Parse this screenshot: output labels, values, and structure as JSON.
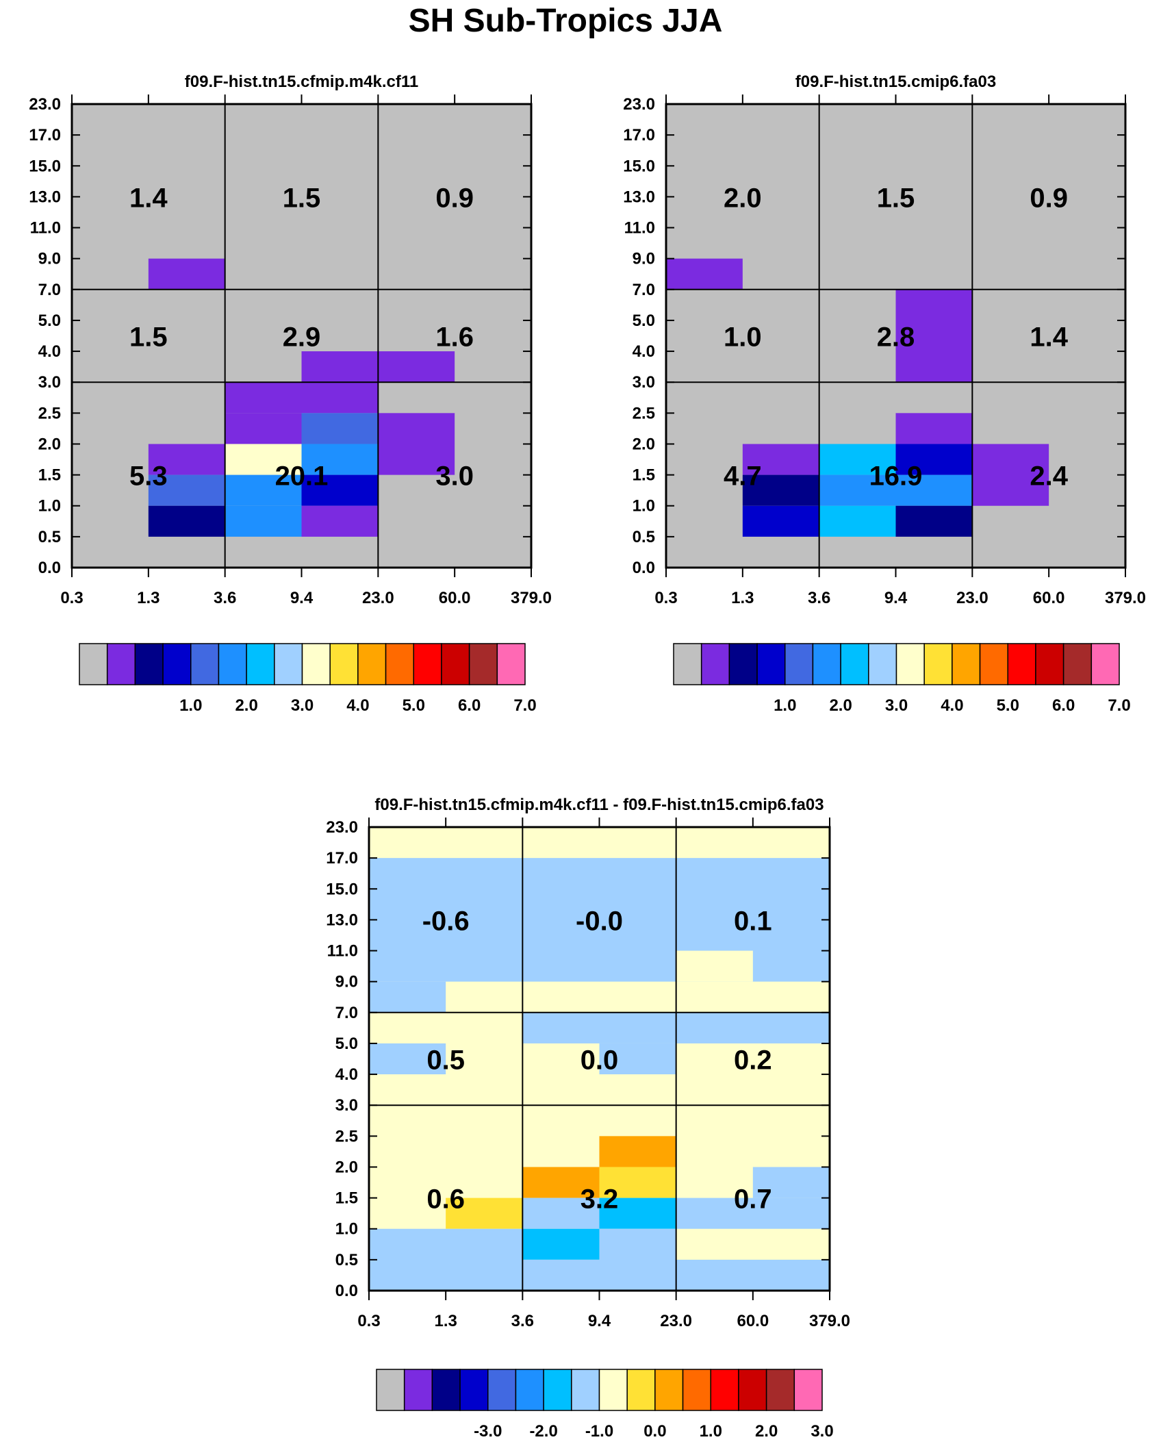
{
  "figure": {
    "title": "SH Sub-Tropics JJA"
  },
  "colors": {
    "missing": "#c0c0c0",
    "seq": [
      "#c0c0c0",
      "#7b2be0",
      "#000088",
      "#0000cc",
      "#4169e1",
      "#1e90ff",
      "#00bfff",
      "#a0d0ff",
      "#ffffcc",
      "#ffe135",
      "#ffa500",
      "#ff6a00",
      "#ff0000",
      "#cc0000",
      "#a52a2a",
      "#ff69b4"
    ]
  },
  "chart_data": [
    {
      "type": "heatmap",
      "title": "f09.F-hist.tn15.cfmip.m4k.cf11",
      "x_ticks": [
        "0.3",
        "1.3",
        "3.6",
        "9.4",
        "23.0",
        "60.0",
        "379.0"
      ],
      "y_ticks": [
        "0.0",
        "0.5",
        "1.0",
        "1.5",
        "2.0",
        "2.5",
        "3.0",
        "4.0",
        "5.0",
        "7.0",
        "9.0",
        "11.0",
        "13.0",
        "15.0",
        "17.0",
        "23.0"
      ],
      "grid": {
        "x_divisions": [
          "3.6",
          "23.0"
        ],
        "y_divisions": [
          "3.0",
          "7.0"
        ]
      },
      "cells": [
        {
          "x": [
            "1.3",
            "3.6"
          ],
          "y": [
            "7.0",
            "9.0"
          ],
          "color": "#7b2be0"
        },
        {
          "x": [
            "9.4",
            "60.0"
          ],
          "y": [
            "3.0",
            "4.0"
          ],
          "color": "#7b2be0"
        },
        {
          "x": [
            "3.6",
            "23.0"
          ],
          "y": [
            "2.5",
            "3.0"
          ],
          "color": "#7b2be0"
        },
        {
          "x": [
            "3.6",
            "9.4"
          ],
          "y": [
            "2.0",
            "2.5"
          ],
          "color": "#7b2be0"
        },
        {
          "x": [
            "9.4",
            "23.0"
          ],
          "y": [
            "2.0",
            "2.5"
          ],
          "color": "#4169e1"
        },
        {
          "x": [
            "23.0",
            "60.0"
          ],
          "y": [
            "1.5",
            "2.5"
          ],
          "color": "#7b2be0"
        },
        {
          "x": [
            "1.3",
            "3.6"
          ],
          "y": [
            "1.5",
            "2.0"
          ],
          "color": "#7b2be0"
        },
        {
          "x": [
            "3.6",
            "9.4"
          ],
          "y": [
            "1.5",
            "2.0"
          ],
          "color": "#ffffcc"
        },
        {
          "x": [
            "9.4",
            "23.0"
          ],
          "y": [
            "1.5",
            "2.0"
          ],
          "color": "#1e90ff"
        },
        {
          "x": [
            "1.3",
            "3.6"
          ],
          "y": [
            "1.0",
            "1.5"
          ],
          "color": "#4169e1"
        },
        {
          "x": [
            "3.6",
            "9.4"
          ],
          "y": [
            "1.0",
            "1.5"
          ],
          "color": "#1e90ff"
        },
        {
          "x": [
            "9.4",
            "23.0"
          ],
          "y": [
            "1.0",
            "1.5"
          ],
          "color": "#0000cc"
        },
        {
          "x": [
            "1.3",
            "3.6"
          ],
          "y": [
            "0.5",
            "1.0"
          ],
          "color": "#000088"
        },
        {
          "x": [
            "3.6",
            "9.4"
          ],
          "y": [
            "0.5",
            "1.0"
          ],
          "color": "#1e90ff"
        },
        {
          "x": [
            "9.4",
            "23.0"
          ],
          "y": [
            "0.5",
            "1.0"
          ],
          "color": "#7b2be0"
        }
      ],
      "labels": [
        {
          "text": "1.4",
          "x": "1.3",
          "y": "13.0"
        },
        {
          "text": "1.5",
          "x": "9.4",
          "y": "13.0"
        },
        {
          "text": "0.9",
          "x": "60.0",
          "y": "13.0"
        },
        {
          "text": "1.5",
          "x": "1.3",
          "y": "4.5"
        },
        {
          "text": "2.9",
          "x": "9.4",
          "y": "4.5"
        },
        {
          "text": "1.6",
          "x": "60.0",
          "y": "4.5"
        },
        {
          "text": "5.3",
          "x": "1.3",
          "y": "1.5"
        },
        {
          "text": "20.1",
          "x": "9.4",
          "y": "1.5"
        },
        {
          "text": "3.0",
          "x": "60.0",
          "y": "1.5"
        }
      ],
      "colorbar": {
        "colors_key": "seq",
        "labels": [
          "1.0",
          "2.0",
          "3.0",
          "4.0",
          "5.0",
          "6.0",
          "7.0"
        ]
      }
    },
    {
      "type": "heatmap",
      "title": "f09.F-hist.tn15.cmip6.fa03",
      "x_ticks": [
        "0.3",
        "1.3",
        "3.6",
        "9.4",
        "23.0",
        "60.0",
        "379.0"
      ],
      "y_ticks": [
        "0.0",
        "0.5",
        "1.0",
        "1.5",
        "2.0",
        "2.5",
        "3.0",
        "4.0",
        "5.0",
        "7.0",
        "9.0",
        "11.0",
        "13.0",
        "15.0",
        "17.0",
        "23.0"
      ],
      "grid": {
        "x_divisions": [
          "3.6",
          "23.0"
        ],
        "y_divisions": [
          "3.0",
          "7.0"
        ]
      },
      "cells": [
        {
          "x": [
            "0.3",
            "1.3"
          ],
          "y": [
            "7.0",
            "9.0"
          ],
          "color": "#7b2be0"
        },
        {
          "x": [
            "9.4",
            "23.0"
          ],
          "y": [
            "3.0",
            "7.0"
          ],
          "color": "#7b2be0"
        },
        {
          "x": [
            "9.4",
            "23.0"
          ],
          "y": [
            "2.0",
            "2.5"
          ],
          "color": "#7b2be0"
        },
        {
          "x": [
            "1.3",
            "3.6"
          ],
          "y": [
            "1.5",
            "2.0"
          ],
          "color": "#7b2be0"
        },
        {
          "x": [
            "3.6",
            "9.4"
          ],
          "y": [
            "1.5",
            "2.0"
          ],
          "color": "#00bfff"
        },
        {
          "x": [
            "9.4",
            "23.0"
          ],
          "y": [
            "1.5",
            "2.0"
          ],
          "color": "#0000cc"
        },
        {
          "x": [
            "23.0",
            "60.0"
          ],
          "y": [
            "1.0",
            "2.0"
          ],
          "color": "#7b2be0"
        },
        {
          "x": [
            "1.3",
            "3.6"
          ],
          "y": [
            "1.0",
            "1.5"
          ],
          "color": "#000088"
        },
        {
          "x": [
            "3.6",
            "9.4"
          ],
          "y": [
            "1.0",
            "1.5"
          ],
          "color": "#1e90ff"
        },
        {
          "x": [
            "9.4",
            "23.0"
          ],
          "y": [
            "1.0",
            "1.5"
          ],
          "color": "#1e90ff"
        },
        {
          "x": [
            "1.3",
            "3.6"
          ],
          "y": [
            "0.5",
            "1.0"
          ],
          "color": "#0000cc"
        },
        {
          "x": [
            "3.6",
            "9.4"
          ],
          "y": [
            "0.5",
            "1.0"
          ],
          "color": "#00bfff"
        },
        {
          "x": [
            "9.4",
            "23.0"
          ],
          "y": [
            "0.5",
            "1.0"
          ],
          "color": "#000088"
        }
      ],
      "labels": [
        {
          "text": "2.0",
          "x": "1.3",
          "y": "13.0"
        },
        {
          "text": "1.5",
          "x": "9.4",
          "y": "13.0"
        },
        {
          "text": "0.9",
          "x": "60.0",
          "y": "13.0"
        },
        {
          "text": "1.0",
          "x": "1.3",
          "y": "4.5"
        },
        {
          "text": "2.8",
          "x": "9.4",
          "y": "4.5"
        },
        {
          "text": "1.4",
          "x": "60.0",
          "y": "4.5"
        },
        {
          "text": "4.7",
          "x": "1.3",
          "y": "1.5"
        },
        {
          "text": "16.9",
          "x": "9.4",
          "y": "1.5"
        },
        {
          "text": "2.4",
          "x": "60.0",
          "y": "1.5"
        }
      ],
      "colorbar": {
        "colors_key": "seq",
        "labels": [
          "1.0",
          "2.0",
          "3.0",
          "4.0",
          "5.0",
          "6.0",
          "7.0"
        ]
      }
    },
    {
      "type": "heatmap",
      "title": "f09.F-hist.tn15.cfmip.m4k.cf11 - f09.F-hist.tn15.cmip6.fa03",
      "x_ticks": [
        "0.3",
        "1.3",
        "3.6",
        "9.4",
        "23.0",
        "60.0",
        "379.0"
      ],
      "y_ticks": [
        "0.0",
        "0.5",
        "1.0",
        "1.5",
        "2.0",
        "2.5",
        "3.0",
        "4.0",
        "5.0",
        "7.0",
        "9.0",
        "11.0",
        "13.0",
        "15.0",
        "17.0",
        "23.0"
      ],
      "grid": {
        "x_divisions": [
          "3.6",
          "23.0"
        ],
        "y_divisions": [
          "3.0",
          "7.0"
        ]
      },
      "background": "#ffffcc",
      "cells": [
        {
          "x": [
            "0.3",
            "379.0"
          ],
          "y": [
            "9.0",
            "17.0"
          ],
          "color": "#a0d0ff"
        },
        {
          "x": [
            "0.3",
            "1.3"
          ],
          "y": [
            "7.0",
            "9.0"
          ],
          "color": "#a0d0ff"
        },
        {
          "x": [
            "23.0",
            "60.0"
          ],
          "y": [
            "9.0",
            "11.0"
          ],
          "color": "#ffffcc"
        },
        {
          "x": [
            "3.6",
            "379.0"
          ],
          "y": [
            "5.0",
            "7.0"
          ],
          "color": "#a0d0ff"
        },
        {
          "x": [
            "0.3",
            "1.3"
          ],
          "y": [
            "4.0",
            "5.0"
          ],
          "color": "#a0d0ff"
        },
        {
          "x": [
            "9.4",
            "23.0"
          ],
          "y": [
            "4.0",
            "5.0"
          ],
          "color": "#a0d0ff"
        },
        {
          "x": [
            "9.4",
            "23.0"
          ],
          "y": [
            "2.0",
            "2.5"
          ],
          "color": "#ffa500"
        },
        {
          "x": [
            "3.6",
            "9.4"
          ],
          "y": [
            "1.5",
            "2.0"
          ],
          "color": "#ffa500"
        },
        {
          "x": [
            "9.4",
            "23.0"
          ],
          "y": [
            "1.5",
            "2.0"
          ],
          "color": "#ffe135"
        },
        {
          "x": [
            "60.0",
            "379.0"
          ],
          "y": [
            "1.5",
            "2.0"
          ],
          "color": "#a0d0ff"
        },
        {
          "x": [
            "1.3",
            "3.6"
          ],
          "y": [
            "1.0",
            "1.5"
          ],
          "color": "#ffe135"
        },
        {
          "x": [
            "3.6",
            "9.4"
          ],
          "y": [
            "1.0",
            "1.5"
          ],
          "color": "#a0d0ff"
        },
        {
          "x": [
            "9.4",
            "23.0"
          ],
          "y": [
            "1.0",
            "1.5"
          ],
          "color": "#00bfff"
        },
        {
          "x": [
            "23.0",
            "379.0"
          ],
          "y": [
            "1.0",
            "1.5"
          ],
          "color": "#a0d0ff"
        },
        {
          "x": [
            "0.3",
            "3.6"
          ],
          "y": [
            "0.0",
            "1.0"
          ],
          "color": "#a0d0ff"
        },
        {
          "x": [
            "3.6",
            "9.4"
          ],
          "y": [
            "0.5",
            "1.0"
          ],
          "color": "#00bfff"
        },
        {
          "x": [
            "9.4",
            "23.0"
          ],
          "y": [
            "0.0",
            "1.0"
          ],
          "color": "#a0d0ff"
        },
        {
          "x": [
            "3.6",
            "9.4"
          ],
          "y": [
            "0.0",
            "0.5"
          ],
          "color": "#a0d0ff"
        },
        {
          "x": [
            "23.0",
            "379.0"
          ],
          "y": [
            "0.0",
            "0.5"
          ],
          "color": "#a0d0ff"
        }
      ],
      "labels": [
        {
          "text": "-0.6",
          "x": "1.3",
          "y": "13.0"
        },
        {
          "text": "-0.0",
          "x": "9.4",
          "y": "13.0"
        },
        {
          "text": "0.1",
          "x": "60.0",
          "y": "13.0"
        },
        {
          "text": "0.5",
          "x": "1.3",
          "y": "4.5"
        },
        {
          "text": "0.0",
          "x": "9.4",
          "y": "4.5"
        },
        {
          "text": "0.2",
          "x": "60.0",
          "y": "4.5"
        },
        {
          "text": "0.6",
          "x": "1.3",
          "y": "1.5"
        },
        {
          "text": "3.2",
          "x": "9.4",
          "y": "1.5"
        },
        {
          "text": "0.7",
          "x": "60.0",
          "y": "1.5"
        }
      ],
      "colorbar": {
        "colors_key": "seq",
        "labels": [
          "-3.0",
          "-2.0",
          "-1.0",
          "0.0",
          "1.0",
          "2.0",
          "3.0"
        ]
      }
    }
  ]
}
